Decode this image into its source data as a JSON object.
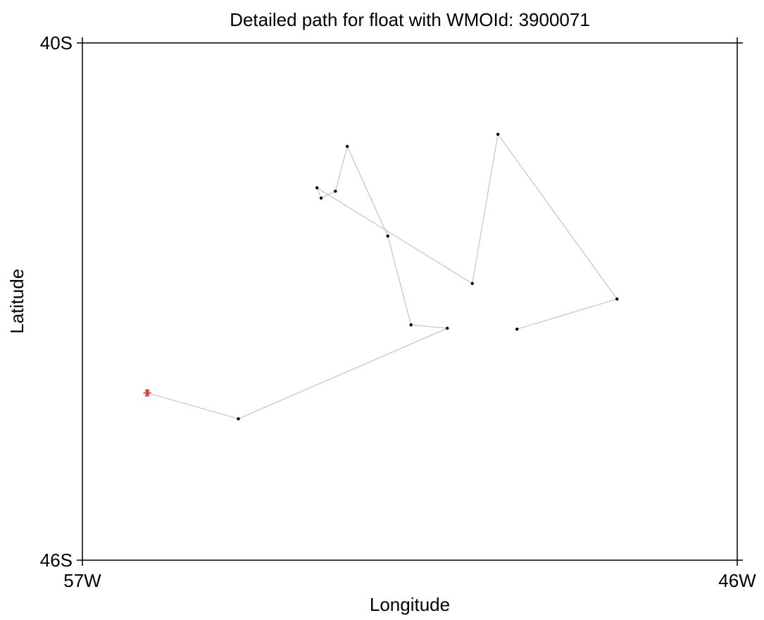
{
  "chart_data": {
    "type": "scatter",
    "title": "Detailed path for float with WMOId: 3900071",
    "xlabel": "Longitude",
    "ylabel": "Latitude",
    "xlim": [
      -57,
      -46
    ],
    "ylim": [
      -46,
      -40
    ],
    "x_ticks": [
      {
        "value": -57,
        "label": "57W"
      },
      {
        "value": -46,
        "label": "46W"
      }
    ],
    "y_ticks": [
      {
        "value": -40,
        "label": "40S"
      },
      {
        "value": -46,
        "label": "46S"
      }
    ],
    "grid": false,
    "legend": "none",
    "series": [
      {
        "points": [
          {
            "lon": -55.91,
            "lat": -44.06
          },
          {
            "lon": -54.38,
            "lat": -44.36
          },
          {
            "lon": -50.87,
            "lat": -43.31
          },
          {
            "lon": -51.48,
            "lat": -43.27
          },
          {
            "lon": -51.87,
            "lat": -42.24
          },
          {
            "lon": -52.55,
            "lat": -41.2
          },
          {
            "lon": -52.75,
            "lat": -41.72
          },
          {
            "lon": -52.99,
            "lat": -41.8
          },
          {
            "lon": -53.06,
            "lat": -41.68
          },
          {
            "lon": -50.45,
            "lat": -42.79
          },
          {
            "lon": -50.02,
            "lat": -41.06
          },
          {
            "lon": -48.02,
            "lat": -42.97
          },
          {
            "lon": -49.7,
            "lat": -43.32
          }
        ]
      }
    ],
    "start_marker_index": 0,
    "colors": {
      "path_line": "#c8c8c8",
      "point": "#000000",
      "start_marker": "#d9302a",
      "axis": "#000000"
    }
  }
}
